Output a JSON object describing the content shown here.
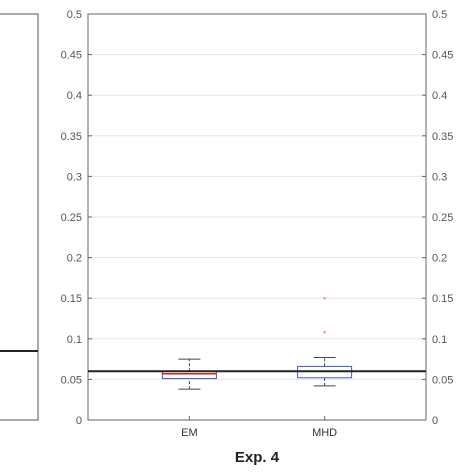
{
  "chart_data": [
    {
      "type": "line",
      "title": "",
      "partial": true,
      "reference_line": 0.085,
      "ylim": [
        0,
        0.5
      ],
      "colors": {
        "line": "#222222",
        "frame": "#555555"
      }
    },
    {
      "type": "box",
      "title": "Exp. 4",
      "xlabel": "",
      "ylabel": "",
      "categories": [
        "EM",
        "MHD"
      ],
      "ylim": [
        0,
        0.5
      ],
      "yticks": [
        "0",
        "0.05",
        "0.1",
        "0.15",
        "0.2",
        "0.25",
        "0.3",
        "0.35",
        "0.4",
        "0.45",
        "0.5"
      ],
      "grid": true,
      "reference_line": 0.06,
      "boxes": [
        {
          "category": "EM",
          "whisker_low": 0.038,
          "q1": 0.051,
          "median": 0.057,
          "q3": 0.06,
          "whisker_high": 0.075,
          "outliers": []
        },
        {
          "category": "MHD",
          "whisker_low": 0.042,
          "q1": 0.052,
          "median": 0.06,
          "q3": 0.066,
          "whisker_high": 0.077,
          "outliers": [
            0.108,
            0.15
          ]
        }
      ],
      "colors": {
        "box": "#4455cc",
        "median": "#cc2222",
        "whisker": "#444444",
        "outlier": "#ff88cc",
        "reference": "#222222",
        "grid": "#e6e6e6",
        "frame": "#666666"
      }
    }
  ]
}
